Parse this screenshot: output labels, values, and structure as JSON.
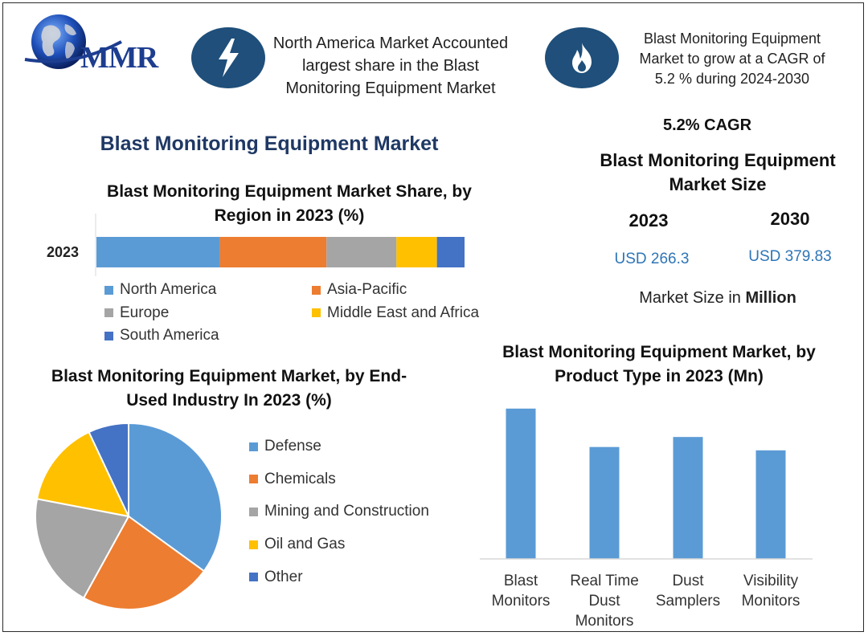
{
  "header": {
    "logo_text": "MMR",
    "info1_text": "North America Market Accounted largest share in the Blast Monitoring Equipment Market",
    "info2_text": "Blast Monitoring Equipment Market to grow at a CAGR of 5.2 % during 2024-2030",
    "icon1": "lightning-icon",
    "icon2": "flame-icon"
  },
  "main_title": "Blast Monitoring Equipment Market",
  "market_size": {
    "cagr_label": "5.2% CAGR",
    "title": "Blast Monitoring Equipment Market Size",
    "year1": "2023",
    "year2": "2030",
    "value1": "USD 266.3",
    "value2": "USD 379.83",
    "unit_prefix": "Market Size in ",
    "unit_bold": "Million"
  },
  "colors": {
    "blue": "#5b9bd5",
    "orange": "#ed7d31",
    "gray": "#a5a5a5",
    "yellow": "#ffc000",
    "darkblue": "#4472c4",
    "icon_bg": "#1f4f7a",
    "title": "#1f3864"
  },
  "chart_data": [
    {
      "type": "bar",
      "orientation": "horizontal-stacked",
      "title": "Blast Monitoring Equipment Market Share, by Region in 2023 (%)",
      "categories": [
        "2023"
      ],
      "series": [
        {
          "name": "North America",
          "values": [
            33.5
          ],
          "color": "#5b9bd5"
        },
        {
          "name": "Asia-Pacific",
          "values": [
            29
          ],
          "color": "#ed7d31"
        },
        {
          "name": "Europe",
          "values": [
            19
          ],
          "color": "#a5a5a5"
        },
        {
          "name": "Middle East and Africa",
          "values": [
            11
          ],
          "color": "#ffc000"
        },
        {
          "name": "South America",
          "values": [
            7.5
          ],
          "color": "#4472c4"
        }
      ],
      "xlim": [
        0,
        100
      ],
      "legend": "bottom"
    },
    {
      "type": "pie",
      "title": "Blast Monitoring Equipment Market, by End-Used Industry In 2023 (%)",
      "labels": [
        "Defense",
        "Chemicals",
        "Mining and Construction",
        "Oil and Gas",
        "Other"
      ],
      "values": [
        35,
        23,
        20,
        15,
        7
      ],
      "colors": [
        "#5b9bd5",
        "#ed7d31",
        "#a5a5a5",
        "#ffc000",
        "#4472c4"
      ],
      "legend": "right"
    },
    {
      "type": "bar",
      "title": "Blast Monitoring Equipment Market, by Product Type in 2023 (Mn)",
      "categories": [
        "Blast Monitors",
        "Real Time Dust Monitors",
        "Dust Samplers",
        "Visibility Monitors"
      ],
      "values": [
        90,
        67,
        73,
        65
      ],
      "ylim": [
        0,
        100
      ],
      "color": "#5b9bd5",
      "xlabel": "",
      "ylabel": ""
    }
  ]
}
